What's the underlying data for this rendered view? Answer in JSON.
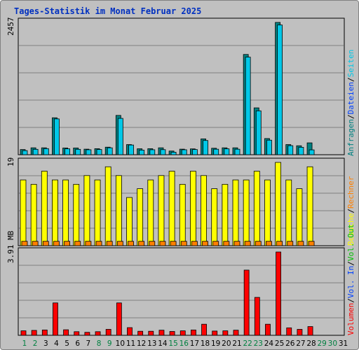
{
  "title": "Tages-Statistik im Monat Februar 2025",
  "colors": {
    "background": "#c0c0c0",
    "title": "#0030c0",
    "anfragen": "#008080",
    "dateien": "#00c8e8",
    "seiten": "#00c8e8",
    "besuche": "#ffff00",
    "rechner": "#ff8000",
    "vol_out": "#00c000",
    "vol_in": "#0040ff",
    "volumen": "#ff0000",
    "day_weekend": "#008040",
    "day_weekday": "#000000"
  },
  "chart_data": [
    {
      "type": "bar",
      "panel": "hits",
      "ymax_label": "2457",
      "ymax": 2457,
      "right_label": [
        {
          "text": "Anfragen",
          "color": "#008080"
        },
        {
          "text": "/",
          "color": "#000000"
        },
        {
          "text": "Dateien",
          "color": "#0040ff"
        },
        {
          "text": "/",
          "color": "#000000"
        },
        {
          "text": "Seiten",
          "color": "#00c8e8"
        }
      ],
      "series": [
        {
          "name": "Anfragen",
          "values": [
            96,
            128,
            128,
            686,
            125,
            125,
            103,
            112,
            140,
            730,
            188,
            110,
            112,
            128,
            68,
            103,
            108,
            294,
            120,
            128,
            128,
            1862,
            870,
            300,
            2457,
            188,
            166,
            220
          ]
        },
        {
          "name": "Dateien",
          "values": [
            76,
            100,
            113,
            665,
            109,
            100,
            92,
            96,
            128,
            675,
            180,
            86,
            92,
            94,
            47,
            92,
            96,
            264,
            102,
            109,
            102,
            1812,
            815,
            270,
            2409,
            168,
            138,
            90
          ]
        }
      ]
    },
    {
      "type": "bar",
      "panel": "visits",
      "ymax_label": "19",
      "ymax": 19,
      "right_label": [
        {
          "text": "Besuche",
          "color": "#ffff00"
        },
        {
          "text": "/",
          "color": "#000000"
        },
        {
          "text": "Rechner",
          "color": "#ff8000"
        }
      ],
      "series": [
        {
          "name": "Besuche",
          "values": [
            15,
            14,
            17,
            15,
            15,
            14,
            16,
            15,
            18,
            16,
            11,
            13,
            15,
            16,
            17,
            14,
            17,
            16,
            13,
            14,
            15,
            15,
            17,
            15,
            19,
            15,
            13,
            18
          ]
        },
        {
          "name": "Rechner",
          "values": [
            1,
            1,
            1,
            1,
            1,
            1,
            1,
            1,
            1,
            1,
            1,
            1,
            1,
            1,
            1,
            1,
            1,
            1,
            1,
            1,
            1,
            1,
            1,
            1,
            1,
            1,
            1,
            1
          ]
        }
      ]
    },
    {
      "type": "bar",
      "panel": "volume",
      "ymax_label": "3.91 MB",
      "ymax": 3.91,
      "right_label": [
        {
          "text": "Volumen",
          "color": "#ff0000"
        },
        {
          "text": "/",
          "color": "#000000"
        },
        {
          "text": "Vol. In",
          "color": "#0040ff"
        },
        {
          "text": "/",
          "color": "#000000"
        },
        {
          "text": "Vol. Out",
          "color": "#00c000"
        }
      ],
      "series": [
        {
          "name": "Volumen",
          "values": [
            0.21,
            0.23,
            0.25,
            1.52,
            0.26,
            0.17,
            0.14,
            0.17,
            0.28,
            1.52,
            0.36,
            0.19,
            0.19,
            0.24,
            0.18,
            0.21,
            0.25,
            0.52,
            0.2,
            0.21,
            0.24,
            3.06,
            1.78,
            0.52,
            3.91,
            0.35,
            0.28,
            0.41
          ]
        }
      ]
    }
  ],
  "days": [
    "1",
    "2",
    "3",
    "4",
    "5",
    "6",
    "7",
    "8",
    "9",
    "10",
    "11",
    "12",
    "13",
    "14",
    "15",
    "16",
    "17",
    "18",
    "19",
    "20",
    "21",
    "22",
    "23",
    "24",
    "25",
    "26",
    "27",
    "28",
    "29",
    "30",
    "31"
  ],
  "weekend_days": [
    1,
    2,
    8,
    9,
    15,
    16,
    22,
    23,
    29,
    30
  ]
}
